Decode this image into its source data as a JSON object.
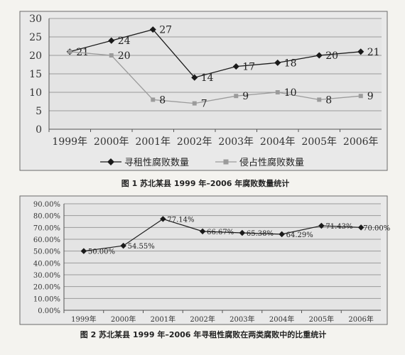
{
  "chart_data": [
    {
      "type": "line",
      "title": "图 1 苏北某县 1999 年–2006 年腐败数量统计",
      "categories": [
        "1999年",
        "2000年",
        "2001年",
        "2002年",
        "2003年",
        "2004年",
        "2005年",
        "2006年"
      ],
      "ylim": [
        0,
        30
      ],
      "yticks": [
        0,
        5,
        10,
        15,
        20,
        25,
        30
      ],
      "grid": true,
      "legend_position": "bottom",
      "series": [
        {
          "name": "寻租性腐败数量",
          "marker": "diamond",
          "color": "#1a1a1a",
          "values": [
            21,
            24,
            27,
            14,
            17,
            18,
            20,
            21
          ],
          "labels": [
            "21",
            "24",
            "27",
            "14",
            "17",
            "18",
            "20",
            "21"
          ]
        },
        {
          "name": "侵占性腐败数量",
          "marker": "square",
          "color": "#9b9b9b",
          "values": [
            21,
            20,
            8,
            7,
            9,
            10,
            8,
            9
          ],
          "labels": [
            "",
            "20",
            "8",
            "7",
            "9",
            "10",
            "8",
            "9"
          ]
        }
      ]
    },
    {
      "type": "line",
      "title": "图 2 苏北某县 1999 年–2006 年寻租性腐败在两类腐败中的比重统计",
      "categories": [
        "1999年",
        "2000年",
        "2001年",
        "2002年",
        "2003年",
        "2004年",
        "2005年",
        "2006年"
      ],
      "ylim": [
        0,
        90
      ],
      "yticks": [
        "0.00%",
        "10.00%",
        "20.00%",
        "30.00%",
        "40.00%",
        "50.00%",
        "60.00%",
        "70.00%",
        "80.00%",
        "90.00%"
      ],
      "grid": true,
      "series": [
        {
          "marker": "diamond",
          "color": "#1a1a1a",
          "values": [
            50.0,
            54.55,
            77.14,
            66.67,
            65.38,
            64.29,
            71.43,
            70.0
          ],
          "labels": [
            "50.00%",
            "54.55%",
            "77.14%",
            "66.67%",
            "65.38%",
            "64.29%",
            "71.43%",
            "70.00%"
          ]
        }
      ]
    }
  ]
}
